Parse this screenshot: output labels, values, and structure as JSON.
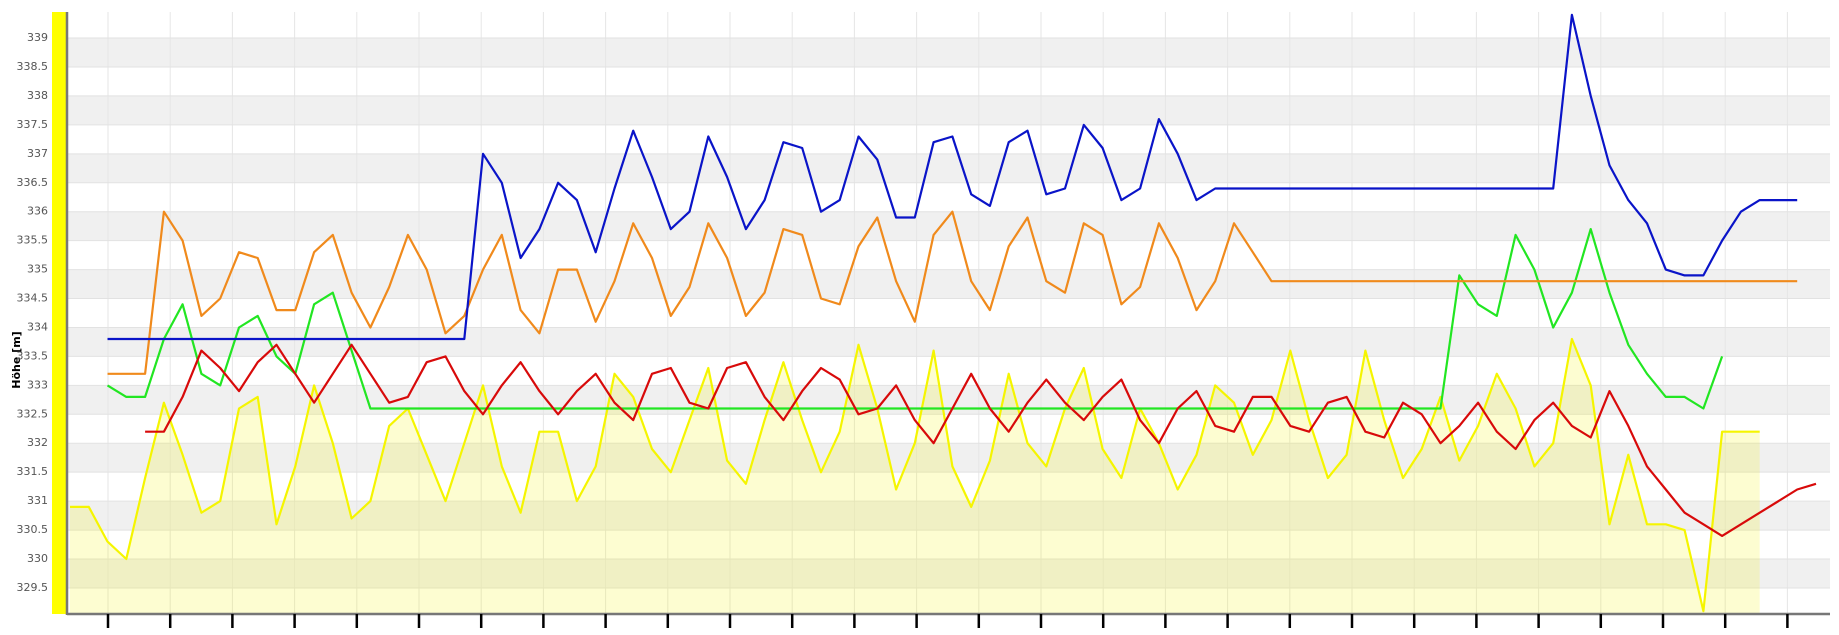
{
  "chart_data": {
    "type": "line",
    "y_label": "Höhe [m]",
    "ylim": [
      329.05,
      339.45
    ],
    "yticks": [
      329.5,
      330,
      330.5,
      331,
      331.5,
      332,
      332.5,
      333,
      333.5,
      334,
      334.5,
      335,
      335.5,
      336,
      336.5,
      337,
      337.5,
      338,
      338.5,
      339
    ],
    "grid": true,
    "series": [
      {
        "color": "#f5f500",
        "area": true,
        "values": [
          330.9,
          330.9,
          330.3,
          330,
          331.4,
          332.7,
          331.8,
          330.8,
          331,
          332.6,
          332.8,
          330.6,
          331.6,
          333,
          332,
          330.7,
          331,
          332.3,
          332.6,
          331.8,
          331,
          332,
          333,
          331.6,
          330.8,
          332.2,
          332.2,
          331,
          331.6,
          333.2,
          332.8,
          331.9,
          331.5,
          332.4,
          333.3,
          331.7,
          331.3,
          332.4,
          333.4,
          332.4,
          331.5,
          332.2,
          333.7,
          332.6,
          331.2,
          332,
          333.6,
          331.6,
          330.9,
          331.7,
          333.2,
          332,
          331.6,
          332.6,
          333.3,
          331.9,
          331.4,
          332.6,
          332,
          331.2,
          331.8,
          333,
          332.7,
          331.8,
          332.4,
          333.6,
          332.4,
          331.4,
          331.8,
          333.6,
          332.4,
          331.4,
          331.9,
          332.8,
          331.7,
          332.3,
          333.2,
          332.6,
          331.6,
          332,
          333.8,
          333,
          330.6,
          331.8,
          330.6,
          330.6,
          330.5,
          329.1,
          332.2,
          332.2,
          332.2,
          null,
          null,
          null
        ]
      },
      {
        "color": "#22e622",
        "values": [
          null,
          null,
          333,
          332.8,
          332.8,
          333.8,
          334.4,
          333.2,
          333,
          334,
          334.2,
          333.5,
          333.2,
          334.4,
          334.6,
          333.6,
          332.6,
          332.6,
          332.6,
          332.6,
          332.6,
          332.6,
          332.6,
          332.6,
          332.6,
          332.6,
          332.6,
          332.6,
          332.6,
          332.6,
          332.6,
          332.6,
          332.6,
          332.6,
          332.6,
          332.6,
          332.6,
          332.6,
          332.6,
          332.6,
          332.6,
          332.6,
          332.6,
          332.6,
          332.6,
          332.6,
          332.6,
          332.6,
          332.6,
          332.6,
          332.6,
          332.6,
          332.6,
          332.6,
          332.6,
          332.6,
          332.6,
          332.6,
          332.6,
          332.6,
          332.6,
          332.6,
          332.6,
          332.6,
          332.6,
          332.6,
          332.6,
          332.6,
          332.6,
          332.6,
          332.6,
          332.6,
          332.6,
          332.6,
          334.9,
          334.4,
          334.2,
          335.6,
          335,
          334,
          334.6,
          335.7,
          334.6,
          333.7,
          333.2,
          332.8,
          332.8,
          332.6,
          333.5,
          null,
          null,
          null,
          null,
          null
        ]
      },
      {
        "color": "#f08a1c",
        "values": [
          null,
          null,
          333.2,
          333.2,
          333.2,
          336,
          335.5,
          334.2,
          334.5,
          335.3,
          335.2,
          334.3,
          334.3,
          335.3,
          335.6,
          334.6,
          334,
          334.7,
          335.6,
          335,
          333.9,
          334.2,
          335,
          335.6,
          334.3,
          333.9,
          335,
          335,
          334.1,
          334.8,
          335.8,
          335.2,
          334.2,
          334.7,
          335.8,
          335.2,
          334.2,
          334.6,
          335.7,
          335.6,
          334.5,
          334.4,
          335.4,
          335.9,
          334.8,
          334.1,
          335.6,
          336,
          334.8,
          334.3,
          335.4,
          335.9,
          334.8,
          334.6,
          335.8,
          335.6,
          334.4,
          334.7,
          335.8,
          335.2,
          334.3,
          334.8,
          335.8,
          335.3,
          334.8,
          334.8,
          334.8,
          334.8,
          334.8,
          334.8,
          334.8,
          334.8,
          334.8,
          334.8,
          334.8,
          334.8,
          334.8,
          334.8,
          334.8,
          334.8,
          334.8,
          334.8,
          334.8,
          334.8,
          334.8,
          334.8,
          334.8,
          334.8,
          334.8,
          334.8,
          334.8,
          334.8,
          334.8,
          null
        ]
      },
      {
        "color": "#0a14c8",
        "values": [
          null,
          null,
          333.8,
          333.8,
          333.8,
          333.8,
          333.8,
          333.8,
          333.8,
          333.8,
          333.8,
          333.8,
          333.8,
          333.8,
          333.8,
          333.8,
          333.8,
          333.8,
          333.8,
          333.8,
          333.8,
          333.8,
          337,
          336.5,
          335.2,
          335.7,
          336.5,
          336.2,
          335.3,
          336.4,
          337.4,
          336.6,
          335.7,
          336,
          337.3,
          336.6,
          335.7,
          336.2,
          337.2,
          337.1,
          336,
          336.2,
          337.3,
          336.9,
          335.9,
          335.9,
          337.2,
          337.3,
          336.3,
          336.1,
          337.2,
          337.4,
          336.3,
          336.4,
          337.5,
          337.1,
          336.2,
          336.4,
          337.6,
          337,
          336.2,
          336.4,
          336.4,
          336.4,
          336.4,
          336.4,
          336.4,
          336.4,
          336.4,
          336.4,
          336.4,
          336.4,
          336.4,
          336.4,
          336.4,
          336.4,
          336.4,
          336.4,
          336.4,
          336.4,
          339.4,
          338,
          336.8,
          336.2,
          335.8,
          335,
          334.9,
          334.9,
          335.5,
          336,
          336.2,
          336.2,
          336.2,
          null
        ]
      },
      {
        "color": "#d80a0a",
        "values": [
          null,
          null,
          null,
          null,
          332.2,
          332.2,
          332.8,
          333.6,
          333.3,
          332.9,
          333.4,
          333.7,
          333.2,
          332.7,
          333.2,
          333.7,
          333.2,
          332.7,
          332.8,
          333.4,
          333.5,
          332.9,
          332.5,
          333,
          333.4,
          332.9,
          332.5,
          332.9,
          333.2,
          332.7,
          332.4,
          333.2,
          333.3,
          332.7,
          332.6,
          333.3,
          333.4,
          332.8,
          332.4,
          332.9,
          333.3,
          333.1,
          332.5,
          332.6,
          333,
          332.4,
          332,
          332.6,
          333.2,
          332.6,
          332.2,
          332.7,
          333.1,
          332.7,
          332.4,
          332.8,
          333.1,
          332.4,
          332,
          332.6,
          332.9,
          332.3,
          332.2,
          332.8,
          332.8,
          332.3,
          332.2,
          332.7,
          332.8,
          332.2,
          332.1,
          332.7,
          332.5,
          332,
          332.3,
          332.7,
          332.2,
          331.9,
          332.4,
          332.7,
          332.3,
          332.1,
          332.9,
          332.3,
          331.6,
          331.2,
          330.8,
          330.6,
          330.4,
          330.6,
          330.8,
          331,
          331.2,
          331.3
        ]
      }
    ]
  }
}
